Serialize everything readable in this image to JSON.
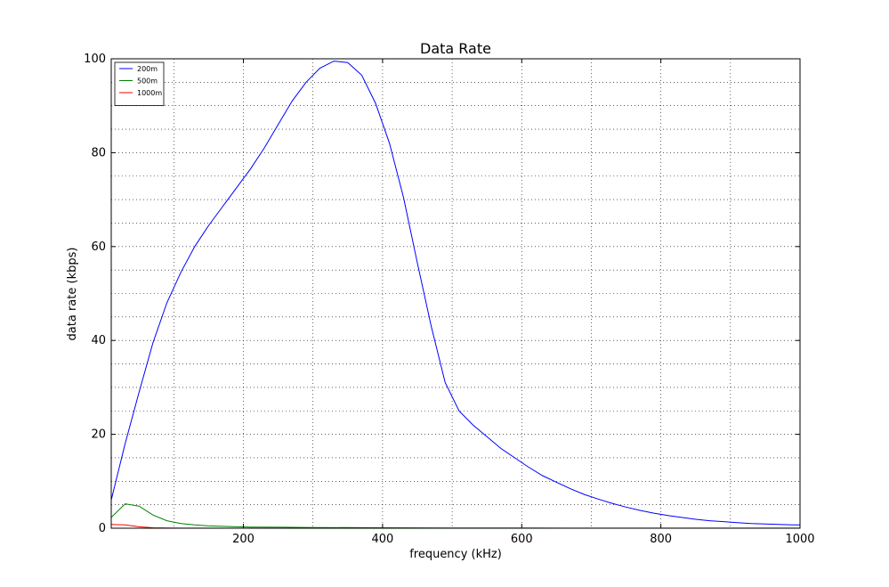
{
  "chart_data": {
    "type": "line",
    "title": "Data Rate",
    "xlabel": "frequency (kHz)",
    "ylabel": "data rate (kbps)",
    "xlim": [
      10,
      1000
    ],
    "ylim": [
      0,
      100
    ],
    "xticks": [
      200,
      400,
      600,
      800,
      1000
    ],
    "yticks": [
      0,
      20,
      40,
      60,
      80,
      100
    ],
    "x_minor_grid": [
      100,
      300,
      500,
      700,
      900
    ],
    "y_minor_grid": [
      5,
      10,
      15,
      25,
      30,
      35,
      45,
      50,
      55,
      65,
      70,
      75,
      85,
      90,
      95
    ],
    "grid": true,
    "legend_position": "upper-left",
    "series": [
      {
        "name": "200m",
        "color": "#0000ff",
        "x": [
          10,
          30,
          50,
          70,
          90,
          110,
          130,
          150,
          170,
          190,
          210,
          230,
          250,
          270,
          290,
          310,
          330,
          350,
          370,
          390,
          410,
          430,
          450,
          470,
          490,
          510,
          530,
          550,
          570,
          590,
          610,
          630,
          650,
          670,
          690,
          710,
          730,
          750,
          770,
          790,
          810,
          830,
          850,
          870,
          890,
          910,
          930,
          950,
          970,
          990,
          1000
        ],
        "y": [
          6,
          18,
          29,
          39.5,
          48,
          54.5,
          60,
          64.5,
          68.5,
          72.5,
          76.5,
          81,
          86,
          91,
          95,
          98,
          99.5,
          99.2,
          96.5,
          90.5,
          82,
          70.5,
          56.5,
          43,
          31,
          25,
          22,
          19.5,
          17,
          15,
          13,
          11.2,
          9.8,
          8.4,
          7.2,
          6.2,
          5.3,
          4.5,
          3.8,
          3.2,
          2.7,
          2.3,
          1.9,
          1.6,
          1.4,
          1.2,
          1.0,
          0.9,
          0.8,
          0.7,
          0.7
        ]
      },
      {
        "name": "500m",
        "color": "#008000",
        "x": [
          10,
          30,
          50,
          70,
          90,
          110,
          130,
          150,
          170,
          190,
          210,
          250,
          300,
          400,
          500,
          600,
          800,
          1000
        ],
        "y": [
          2.3,
          5.2,
          4.7,
          2.8,
          1.6,
          1.0,
          0.7,
          0.5,
          0.4,
          0.3,
          0.25,
          0.2,
          0.15,
          0.1,
          0.05,
          0.03,
          0.02,
          0.01
        ]
      },
      {
        "name": "1000m",
        "color": "#ff0000",
        "x": [
          10,
          30,
          50,
          70,
          90,
          110,
          150,
          200,
          400,
          600,
          800,
          1000
        ],
        "y": [
          0.8,
          0.7,
          0.3,
          0.1,
          0.05,
          0.02,
          0.01,
          0.0,
          0.0,
          0.0,
          0.0,
          0.0
        ]
      }
    ]
  }
}
